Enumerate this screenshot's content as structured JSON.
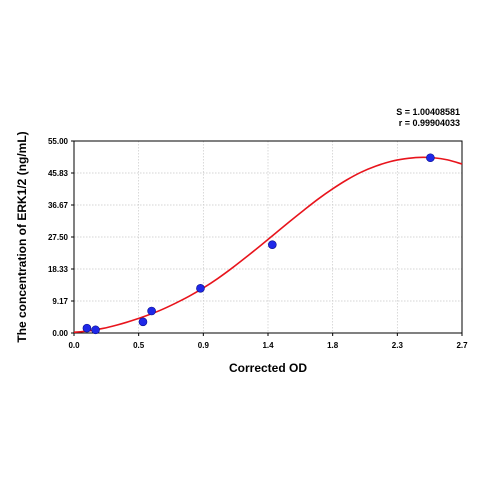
{
  "stats": {
    "s_text": "S = 1.00408581",
    "r_text": "r = 0.99904033"
  },
  "colors": {
    "curve": "#e8141c",
    "point": "#1f28e8",
    "point_edge": "#0a0f8a",
    "grid": "#c8c8c8",
    "axis": "#000000"
  },
  "chart_data": {
    "type": "scatter",
    "title": "",
    "xlabel": "Corrected OD",
    "ylabel": "The concentration of ERK1/2 (ng/mL)",
    "xlim": [
      0.0,
      2.7
    ],
    "ylim": [
      0.0,
      55.0
    ],
    "x_ticks": [
      "0.0",
      "0.5",
      "0.9",
      "1.4",
      "1.8",
      "2.3",
      "2.7"
    ],
    "y_ticks": [
      "0.00",
      "9.17",
      "18.33",
      "27.50",
      "36.67",
      "45.83",
      "55.00"
    ],
    "grid": true,
    "points": [
      {
        "x": 0.09,
        "y": 1.4
      },
      {
        "x": 0.15,
        "y": 0.9
      },
      {
        "x": 0.48,
        "y": 3.2
      },
      {
        "x": 0.54,
        "y": 6.3
      },
      {
        "x": 0.88,
        "y": 12.8
      },
      {
        "x": 1.38,
        "y": 25.3
      },
      {
        "x": 2.48,
        "y": 50.2
      }
    ],
    "fit_curve": {
      "x": [
        0.0,
        0.1,
        0.2,
        0.3,
        0.4,
        0.5,
        0.6,
        0.7,
        0.8,
        0.9,
        1.0,
        1.1,
        1.2,
        1.3,
        1.4,
        1.5,
        1.6,
        1.7,
        1.8,
        1.9,
        2.0,
        2.1,
        2.2,
        2.3,
        2.4,
        2.5,
        2.6,
        2.7
      ],
      "y": [
        0.2,
        0.6,
        1.3,
        2.3,
        3.5,
        4.9,
        6.5,
        8.4,
        10.5,
        12.9,
        15.6,
        18.6,
        21.8,
        25.1,
        28.5,
        31.9,
        35.2,
        38.4,
        41.3,
        43.9,
        46.1,
        47.8,
        49.1,
        49.9,
        50.3,
        50.2,
        49.6,
        48.4
      ]
    }
  }
}
